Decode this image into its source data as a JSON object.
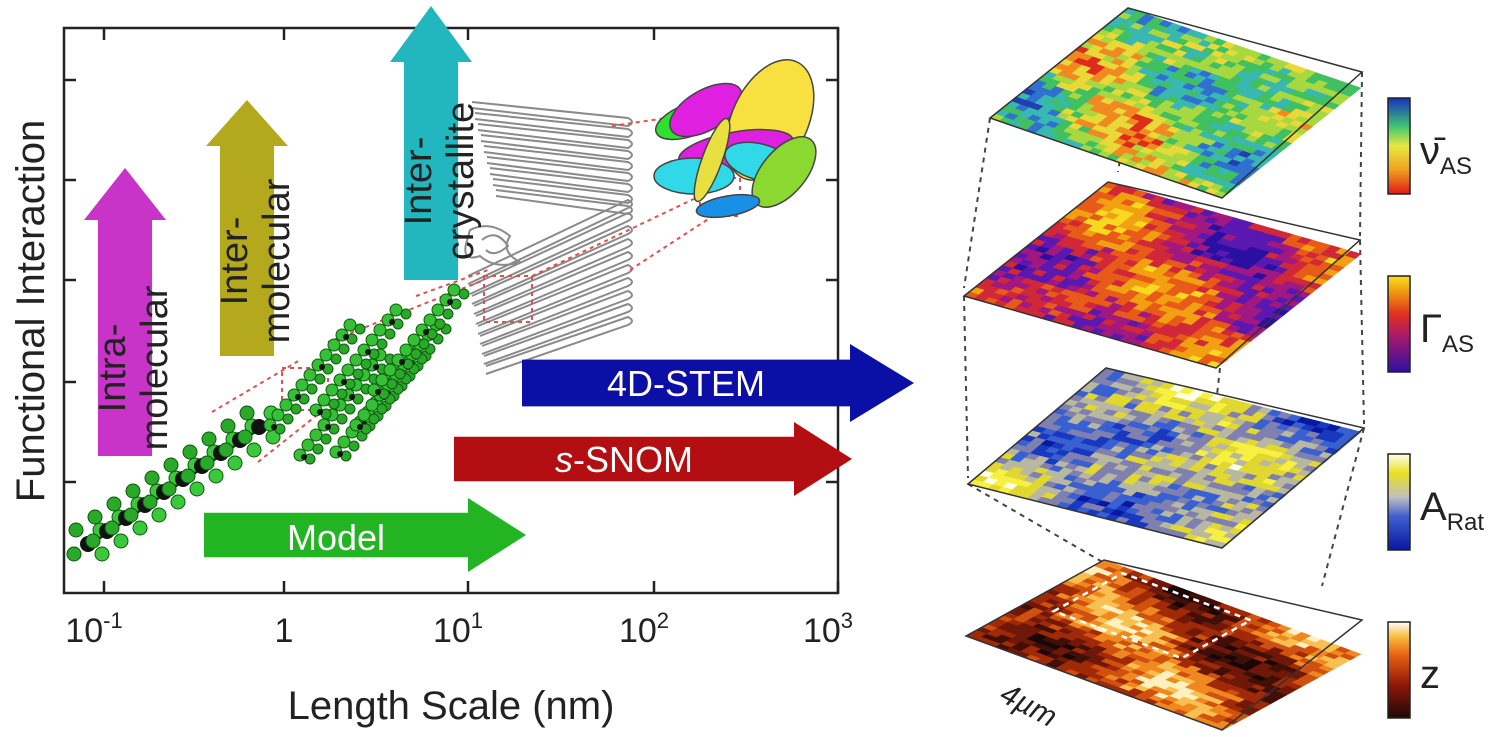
{
  "axis": {
    "ylabel": "Functional Interaction",
    "xlabel": "Length Scale (nm)",
    "xticks": [
      {
        "base": "10",
        "exp": "-1"
      },
      {
        "base": "1",
        "exp": ""
      },
      {
        "base": "10",
        "exp": "1"
      },
      {
        "base": "10",
        "exp": "2"
      },
      {
        "base": "10",
        "exp": "3"
      }
    ]
  },
  "interaction_arrows": [
    {
      "lines": [
        "Intra-",
        "molecular"
      ],
      "color": "#c833c8"
    },
    {
      "lines": [
        "Inter-",
        "molecular"
      ],
      "color": "#b4a81c"
    },
    {
      "lines": [
        "Inter-",
        "crystallite"
      ],
      "color": "#22b6be"
    }
  ],
  "technique_arrows": [
    {
      "prefix": "",
      "label": "4D-STEM",
      "color": "#0c0fa6"
    },
    {
      "prefix": "s",
      "label": "-SNOM",
      "color": "#b30f12"
    },
    {
      "prefix": "",
      "label": "Model",
      "color": "#22b422"
    }
  ],
  "maps": [
    {
      "label": "ν̄",
      "sub": "AS",
      "palette": "spectral"
    },
    {
      "label": "Γ",
      "sub": "AS",
      "palette": "plasma"
    },
    {
      "label": "A",
      "sub": "Rat",
      "palette": "bwy"
    },
    {
      "label": "z",
      "sub": "",
      "palette": "heat"
    }
  ],
  "scale_bar": "4µm"
}
